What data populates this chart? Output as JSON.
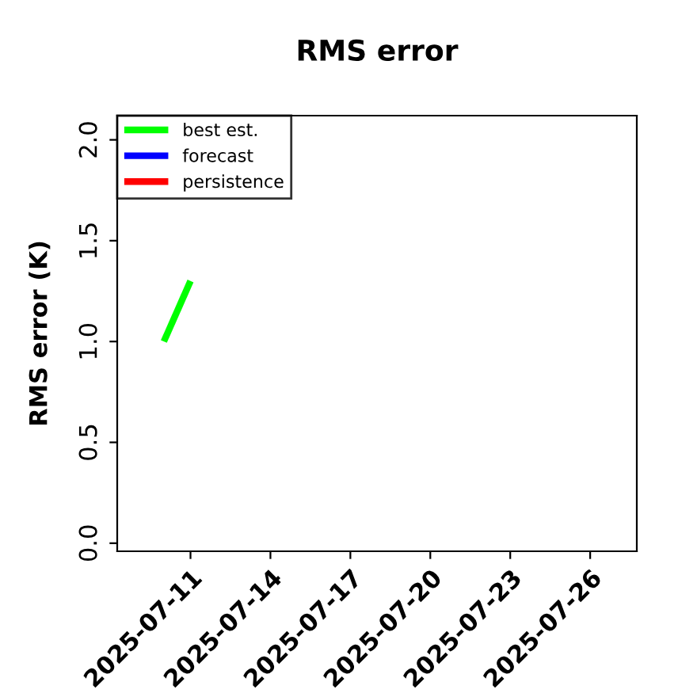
{
  "chart_data": {
    "type": "line",
    "title": "RMS error",
    "ylabel": "RMS error (K)",
    "xlim": [
      "2025-07-08T06:00",
      "2025-07-27T18:00"
    ],
    "ylim": [
      -0.04,
      2.12
    ],
    "xticks": [
      {
        "value": "2025-07-11",
        "label": "2025-07-11"
      },
      {
        "value": "2025-07-14",
        "label": "2025-07-14"
      },
      {
        "value": "2025-07-17",
        "label": "2025-07-17"
      },
      {
        "value": "2025-07-20",
        "label": "2025-07-20"
      },
      {
        "value": "2025-07-23",
        "label": "2025-07-23"
      },
      {
        "value": "2025-07-26",
        "label": "2025-07-26"
      }
    ],
    "yticks": [
      {
        "value": 0,
        "label": "0.0"
      },
      {
        "value": 0.5,
        "label": "0.5"
      },
      {
        "value": 1,
        "label": "1.0"
      },
      {
        "value": 1.5,
        "label": "1.5"
      },
      {
        "value": 2,
        "label": "2.0"
      }
    ],
    "series": [
      {
        "name": "best est.",
        "color": "#00ff00",
        "x": [
          "2025-07-10",
          "2025-07-11"
        ],
        "values": [
          1.0,
          1.3
        ]
      },
      {
        "name": "forecast",
        "color": "#0000ff"
      },
      {
        "name": "persistence",
        "color": "#ff0000"
      }
    ],
    "grid": false,
    "legend": "top left",
    "marker": "none",
    "line_style": "solid"
  }
}
